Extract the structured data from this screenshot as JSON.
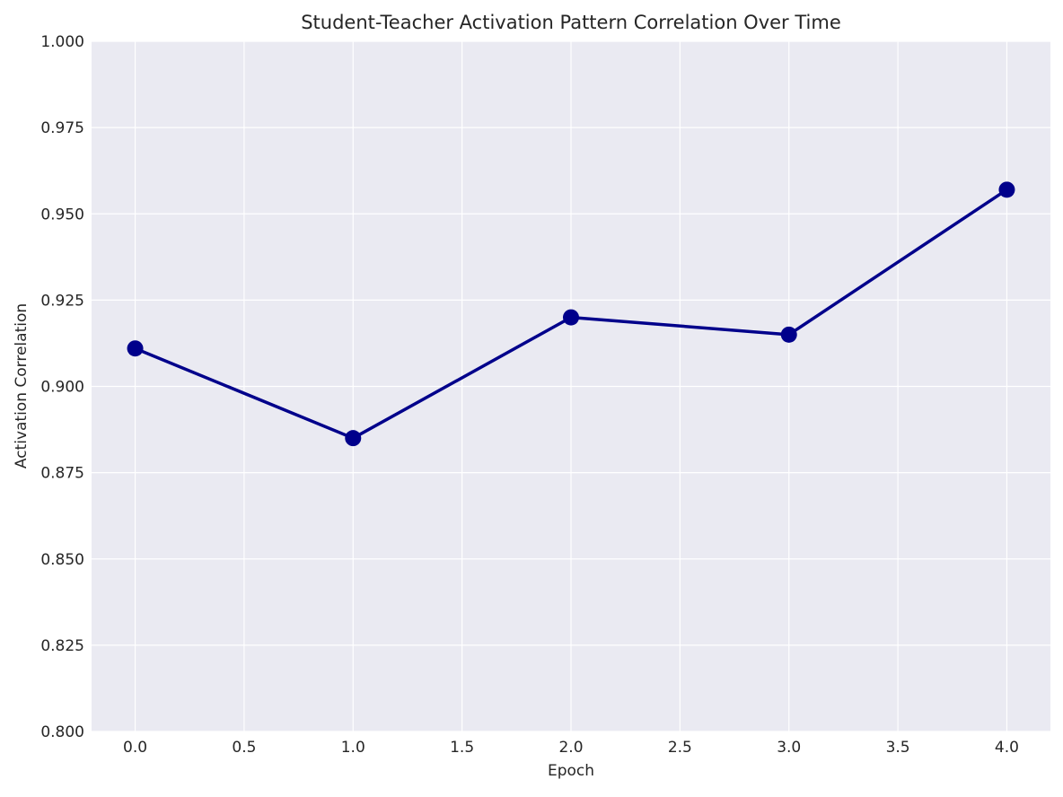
{
  "chart_data": {
    "type": "line",
    "title": "Student-Teacher Activation Pattern Correlation Over Time",
    "xlabel": "Epoch",
    "ylabel": "Activation Correlation",
    "xlim": [
      -0.2,
      4.2
    ],
    "ylim": [
      0.8,
      1.0
    ],
    "x_ticks": [
      0.0,
      0.5,
      1.0,
      1.5,
      2.0,
      2.5,
      3.0,
      3.5,
      4.0
    ],
    "x_tick_labels": [
      "0.0",
      "0.5",
      "1.0",
      "1.5",
      "2.0",
      "2.5",
      "3.0",
      "3.5",
      "4.0"
    ],
    "y_ticks": [
      0.8,
      0.825,
      0.85,
      0.875,
      0.9,
      0.925,
      0.95,
      0.975,
      1.0
    ],
    "y_tick_labels": [
      "0.800",
      "0.825",
      "0.850",
      "0.875",
      "0.900",
      "0.925",
      "0.950",
      "0.975",
      "1.000"
    ],
    "grid": true,
    "series": [
      {
        "x": [
          0,
          1,
          2,
          3,
          4
        ],
        "y": [
          0.911,
          0.885,
          0.92,
          0.915,
          0.957
        ],
        "color": "#00008b",
        "marker": "circle"
      }
    ],
    "colors": {
      "plot_background": "#eaeaf2",
      "grid": "#ffffff",
      "line": "#00008b"
    }
  }
}
